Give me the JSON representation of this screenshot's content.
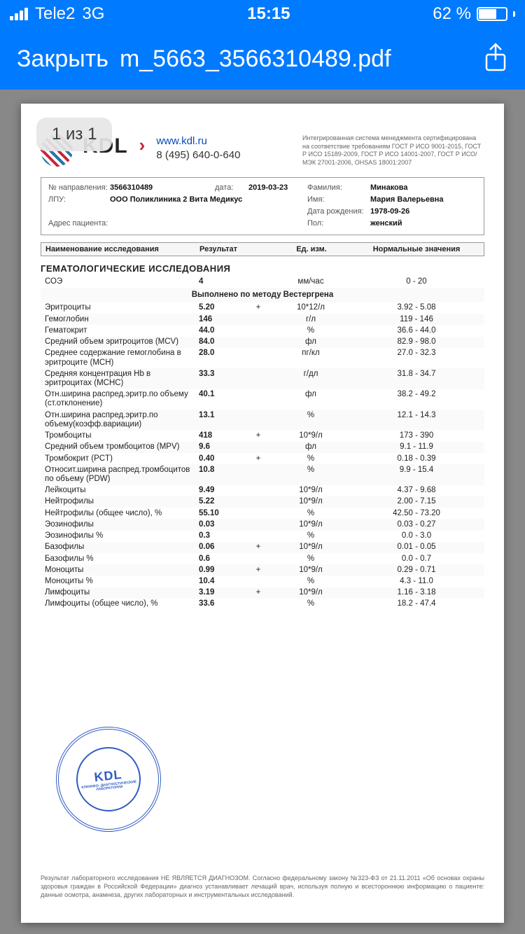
{
  "status": {
    "carrier": "Tele2",
    "network": "3G",
    "time": "15:15",
    "battery_pct": "62 %"
  },
  "nav": {
    "close": "Закрыть",
    "title": "m_5663_3566310489.pdf"
  },
  "viewer": {
    "page_counter": "1 из 1"
  },
  "lab": {
    "logo_text": "KDL",
    "site": "www.kdl.ru",
    "phone": "8 (495) 640-0-640",
    "cert": "Интегрированная система менеджмента сертифицирована на соответствие требованиям ГОСТ Р ИСО 9001-2015, ГОСТ Р ИСО 15189-2009, ГОСТ Р ИСО 14001-2007, ГОСТ Р ИСО/МЭК 27001-2006, OHSAS 18001:2007"
  },
  "patient": {
    "ref_no_label": "№ направления:",
    "ref_no": "3566310489",
    "date_label": "дата:",
    "date": "2019-03-23",
    "lastname_label": "Фамилия:",
    "lastname": "Минакова",
    "lpu_label": "ЛПУ:",
    "lpu": "ООО Поликлиника 2 Вита Медикус",
    "firstname_label": "Имя:",
    "firstname": "Мария Валерьевна",
    "dob_label": "Дата рождения:",
    "dob": "1978-09-26",
    "address_label": "Адрес пациента:",
    "sex_label": "Пол:",
    "sex": "женский"
  },
  "table": {
    "col_name": "Наименование исследования",
    "col_result": "Результат",
    "col_unit": "Ед. изм.",
    "col_ref": "Нормальные значения",
    "section": "ГЕМАТОЛОГИЧЕСКИЕ ИССЛЕДОВАНИЯ",
    "method_note": "Выполнено по методу Вестергрена",
    "rows": [
      {
        "n": "СОЭ",
        "v": "4",
        "f": "",
        "u": "мм/час",
        "r": "0 - 20"
      },
      {
        "n": "Эритроциты",
        "v": "5.20",
        "f": "+",
        "u": "10*12/л",
        "r": "3.92 - 5.08"
      },
      {
        "n": "Гемоглобин",
        "v": "146",
        "f": "",
        "u": "г/л",
        "r": "119 - 146"
      },
      {
        "n": "Гематокрит",
        "v": "44.0",
        "f": "",
        "u": "%",
        "r": "36.6 - 44.0"
      },
      {
        "n": "Средний объем эритроцитов (MCV)",
        "v": "84.0",
        "f": "",
        "u": "фл",
        "r": "82.9 - 98.0"
      },
      {
        "n": "Среднее содержание гемоглобина в эритроците (MCH)",
        "v": "28.0",
        "f": "",
        "u": "пг/кл",
        "r": "27.0 - 32.3"
      },
      {
        "n": "Средняя концентрация Hb в эритроцитах (MCHC)",
        "v": "33.3",
        "f": "",
        "u": "г/дл",
        "r": "31.8 - 34.7"
      },
      {
        "n": "Отн.ширина распред.эритр.по объему (ст.отклонение)",
        "v": "40.1",
        "f": "",
        "u": "фл",
        "r": "38.2 - 49.2"
      },
      {
        "n": "Отн.ширина распред.эритр.по объему(коэфф.вариации)",
        "v": "13.1",
        "f": "",
        "u": "%",
        "r": "12.1 - 14.3"
      },
      {
        "n": "Тромбоциты",
        "v": "418",
        "f": "+",
        "u": "10*9/л",
        "r": "173 - 390"
      },
      {
        "n": "Средний объем тромбоцитов (MPV)",
        "v": "9.6",
        "f": "",
        "u": "фл",
        "r": "9.1 - 11.9"
      },
      {
        "n": "Тромбокрит (PCT)",
        "v": "0.40",
        "f": "+",
        "u": "%",
        "r": "0.18 - 0.39"
      },
      {
        "n": "Относит.ширина распред.тромбоцитов по объему (PDW)",
        "v": "10.8",
        "f": "",
        "u": "%",
        "r": "9.9 - 15.4"
      },
      {
        "n": "Лейкоциты",
        "v": "9.49",
        "f": "",
        "u": "10*9/л",
        "r": "4.37 - 9.68"
      },
      {
        "n": "Нейтрофилы",
        "v": "5.22",
        "f": "",
        "u": "10*9/л",
        "r": "2.00 - 7.15"
      },
      {
        "n": "Нейтрофилы (общее число), %",
        "v": "55.10",
        "f": "",
        "u": "%",
        "r": "42.50 - 73.20"
      },
      {
        "n": "Эозинофилы",
        "v": "0.03",
        "f": "",
        "u": "10*9/л",
        "r": "0.03 - 0.27"
      },
      {
        "n": "Эозинофилы %",
        "v": "0.3",
        "f": "",
        "u": "%",
        "r": "0.0 - 3.0"
      },
      {
        "n": "Базофилы",
        "v": "0.06",
        "f": "+",
        "u": "10*9/л",
        "r": "0.01 - 0.05"
      },
      {
        "n": "Базофилы %",
        "v": "0.6",
        "f": "",
        "u": "%",
        "r": "0.0 - 0.7"
      },
      {
        "n": "Моноциты",
        "v": "0.99",
        "f": "+",
        "u": "10*9/л",
        "r": "0.29 - 0.71"
      },
      {
        "n": "Моноциты %",
        "v": "10.4",
        "f": "",
        "u": "%",
        "r": "4.3 - 11.0"
      },
      {
        "n": "Лимфоциты",
        "v": "3.19",
        "f": "+",
        "u": "10*9/л",
        "r": "1.16 - 3.18"
      },
      {
        "n": "Лимфоциты (общее число), %",
        "v": "33.6",
        "f": "",
        "u": "%",
        "r": "18.2 - 47.4"
      }
    ]
  },
  "stamp": {
    "brand": "KDL",
    "sub": "КЛИНИКО-\nДИАГНОСТИЧЕСКИЕ\nЛАБОРАТОРИИ"
  },
  "disclaimer": "Результат лабораторного исследования НЕ ЯВЛЯЕТСЯ ДИАГНОЗОМ. Согласно федеральному закону №323-ФЗ от 21.11.2011 «Об основах охраны здоровья граждан в Российской Федерации» диагноз устанавливает лечащий врач, используя полную и всестороннюю информацию о пациенте: данные осмотра, анамнеза, других лабораторных и инструментальных исследований."
}
